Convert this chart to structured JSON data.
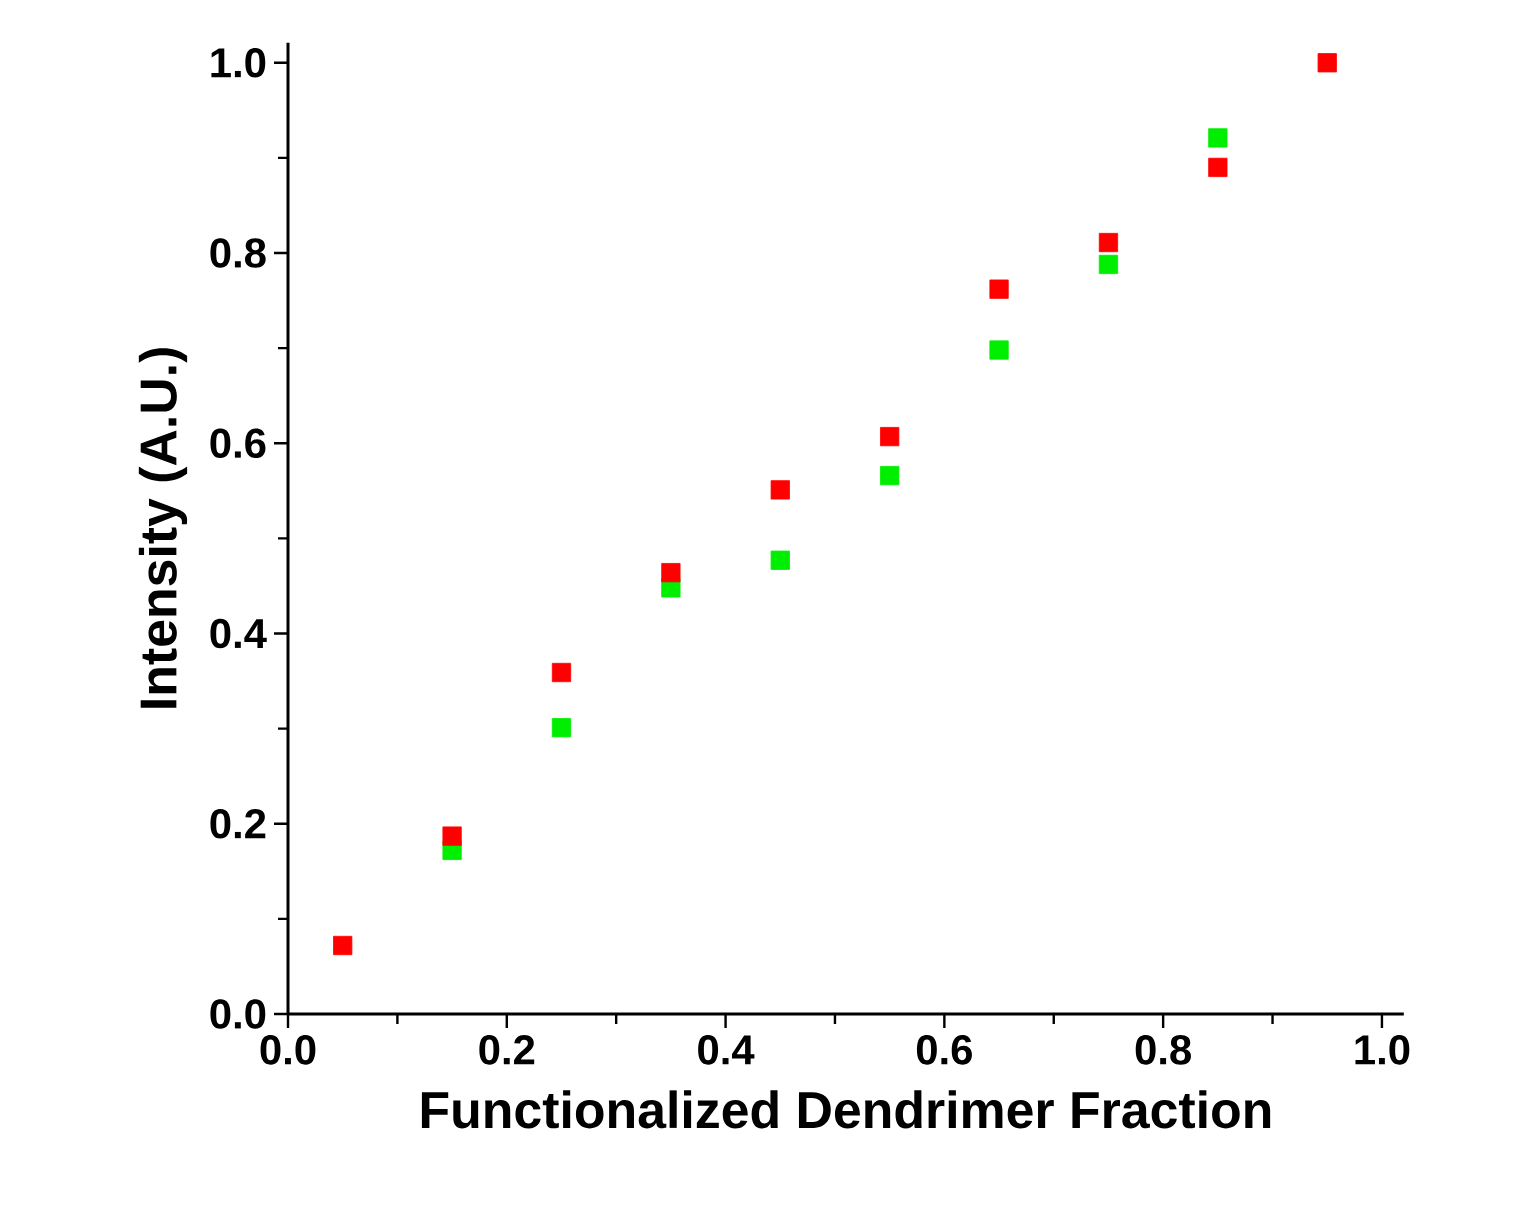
{
  "chart_data": {
    "type": "scatter",
    "xlabel": "Functionalized Dendrimer Fraction",
    "ylabel": "Intensity (A.U.)",
    "x": [
      0.05,
      0.15,
      0.25,
      0.35,
      0.45,
      0.55,
      0.65,
      0.75,
      0.85,
      0.95
    ],
    "series": [
      {
        "color": "#00ee00",
        "values": [
          null,
          0.172,
          0.301,
          0.448,
          0.477,
          0.566,
          0.698,
          0.788,
          0.921,
          null
        ]
      },
      {
        "color": "#ff0000",
        "values": [
          0.072,
          0.187,
          0.359,
          0.464,
          0.551,
          0.607,
          0.762,
          0.811,
          0.89,
          1.0
        ]
      }
    ],
    "xlim": [
      0,
      1.02
    ],
    "ylim": [
      0,
      1.021
    ],
    "xticks": [
      {
        "value": 0,
        "label": "0.0"
      },
      {
        "value": 0.2,
        "label": "0.2"
      },
      {
        "value": 0.4,
        "label": "0.4"
      },
      {
        "value": 0.6,
        "label": "0.6"
      },
      {
        "value": 0.8,
        "label": "0.8"
      },
      {
        "value": 1.0,
        "label": "1.0"
      }
    ],
    "yticks": [
      {
        "value": 0,
        "label": "0.0"
      },
      {
        "value": 0.2,
        "label": "0.2"
      },
      {
        "value": 0.4,
        "label": "0.4"
      },
      {
        "value": 0.6,
        "label": "0.6"
      },
      {
        "value": 0.8,
        "label": "0.8"
      },
      {
        "value": 1.0,
        "label": "1.0"
      }
    ],
    "marker": "square",
    "grid": false
  }
}
